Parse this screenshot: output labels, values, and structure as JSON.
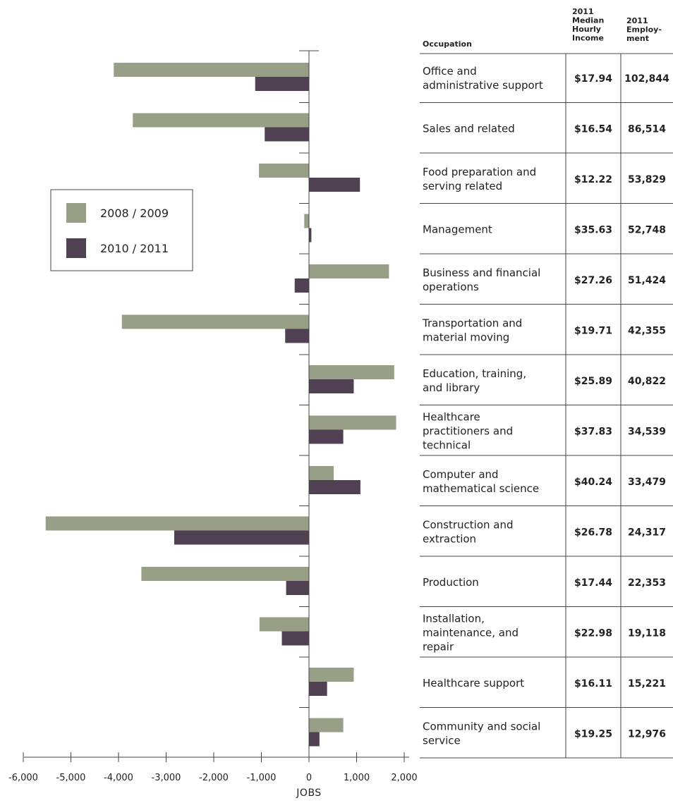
{
  "chart_data": {
    "type": "bar",
    "orientation": "horizontal",
    "xlabel": "JOBS",
    "xlim": [
      -6000,
      2000
    ],
    "xticks": [
      -6000,
      -5000,
      -4000,
      -3000,
      -2000,
      -1000,
      0,
      1000,
      2000
    ],
    "xtick_labels": [
      "-6,000",
      "-5,000",
      "-4,000",
      "-3,000",
      "-2,000",
      "-1,000",
      "0",
      "1,000",
      "2,000"
    ],
    "legend_position": "left",
    "categories": [
      "Office and administrative support",
      "Sales and related",
      "Food preparation and serving related",
      "Management",
      "Business and financial operations",
      "Transportation and material moving",
      "Education, training, and library",
      "Healthcare practitioners and technical",
      "Computer and mathematical science",
      "Construction and extraction",
      "Production",
      "Installation, maintenance, and repair",
      "Healthcare support",
      "Community and social service"
    ],
    "series": [
      {
        "name": "2008 / 2009",
        "color": "#979f86",
        "values": [
          -4100,
          -3700,
          -1050,
          -100,
          1680,
          -3930,
          1790,
          1830,
          520,
          -5530,
          -3520,
          -1040,
          940,
          720
        ]
      },
      {
        "name": "2010 / 2011",
        "color": "#4f4151",
        "values": [
          -1130,
          -930,
          1070,
          50,
          -300,
          -500,
          940,
          720,
          1080,
          -2830,
          -480,
          -570,
          380,
          220
        ]
      }
    ],
    "table": {
      "headers": {
        "occupation": "Occupation",
        "income": [
          "2011",
          "Median",
          "Hourly",
          "Income"
        ],
        "employment": [
          "2011",
          "Employ-",
          "ment"
        ]
      },
      "rows": [
        {
          "occupation": [
            "Office and",
            "administrative support"
          ],
          "income": "$17.94",
          "employment": "102,844"
        },
        {
          "occupation": [
            "Sales and related"
          ],
          "income": "$16.54",
          "employment": "86,514"
        },
        {
          "occupation": [
            "Food preparation and",
            "serving related"
          ],
          "income": "$12.22",
          "employment": "53,829"
        },
        {
          "occupation": [
            "Management"
          ],
          "income": "$35.63",
          "employment": "52,748"
        },
        {
          "occupation": [
            "Business and financial",
            "operations"
          ],
          "income": "$27.26",
          "employment": "51,424"
        },
        {
          "occupation": [
            "Transportation and",
            "material moving"
          ],
          "income": "$19.71",
          "employment": "42,355"
        },
        {
          "occupation": [
            "Education, training,",
            "and library"
          ],
          "income": "$25.89",
          "employment": "40,822"
        },
        {
          "occupation": [
            "Healthcare",
            "practitioners and",
            "technical"
          ],
          "income": "$37.83",
          "employment": "34,539"
        },
        {
          "occupation": [
            "Computer and",
            "mathematical science"
          ],
          "income": "$40.24",
          "employment": "33,479"
        },
        {
          "occupation": [
            "Construction and",
            "extraction"
          ],
          "income": "$26.78",
          "employment": "24,317"
        },
        {
          "occupation": [
            "Production"
          ],
          "income": "$17.44",
          "employment": "22,353"
        },
        {
          "occupation": [
            "Installation,",
            "maintenance, and",
            "repair"
          ],
          "income": "$22.98",
          "employment": "19,118"
        },
        {
          "occupation": [
            "Healthcare support"
          ],
          "income": "$16.11",
          "employment": "15,221"
        },
        {
          "occupation": [
            "Community and social",
            "service"
          ],
          "income": "$19.25",
          "employment": "12,976"
        }
      ]
    }
  }
}
